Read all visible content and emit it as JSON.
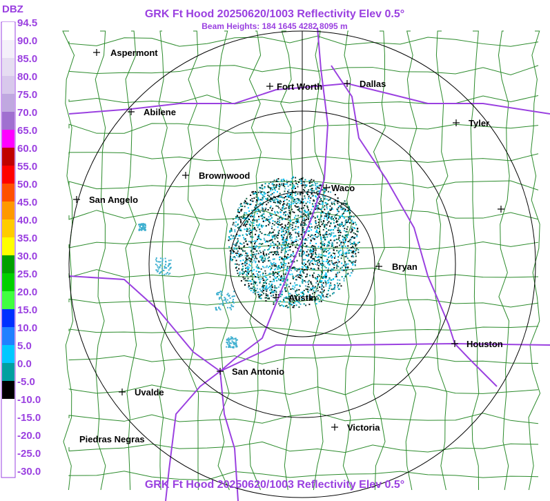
{
  "header": {
    "title": "GRK Ft Hood 20250620/1003 Reflectivity Elev 0.5°",
    "subtitle": "Beam Heights: 184 1645 4282 8095 m"
  },
  "footer": {
    "title": "GRK Ft Hood 20250620/1003 Reflectivity Elev 0.5°"
  },
  "legend": {
    "unit": "DBZ",
    "labels": [
      "94.5",
      "90.0",
      "85.0",
      "80.0",
      "75.0",
      "70.0",
      "65.0",
      "60.0",
      "55.0",
      "50.0",
      "45.0",
      "40.0",
      "35.0",
      "30.0",
      "25.0",
      "20.0",
      "15.0",
      "10.0",
      "5.0",
      "0.0",
      "-5.0",
      "-10.0",
      "-15.0",
      "-20.0",
      "-25.0",
      "-30.0"
    ],
    "colors": [
      "#ffffff",
      "#f4f0fa",
      "#e6ddf2",
      "#d8c8ec",
      "#c0a8e0",
      "#a070d0",
      "#ff00ff",
      "#c00000",
      "#ff0000",
      "#ff5000",
      "#ff9900",
      "#ffcc00",
      "#ffff00",
      "#00a000",
      "#00d000",
      "#40ff40",
      "#0030ff",
      "#2080ff",
      "#00c8ff",
      "#00a0a0",
      "#000000",
      "#ffffff",
      "#ffffff",
      "#ffffff",
      "#ffffff"
    ]
  },
  "cities": [
    "Aspermont",
    "Fort Worth",
    "Dallas",
    "Abilene",
    "Tyler",
    "Brownwood",
    "Waco",
    "San Angelo",
    "Bryan",
    "Austin",
    "Houston",
    "San Antonio",
    "Uvalde",
    "Victoria",
    "Piedras Negras"
  ]
}
